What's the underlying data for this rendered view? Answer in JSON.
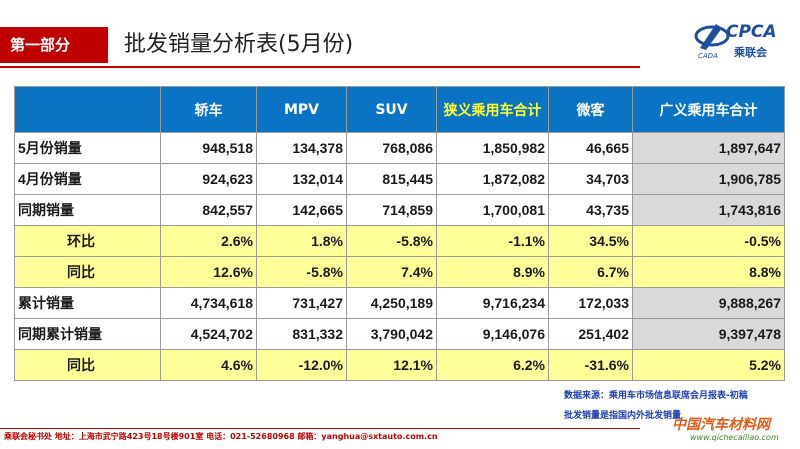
{
  "header": {
    "section_tag": "第一部分",
    "title": "批发销量分析表(5月份)",
    "logo_text": "CPCA",
    "logo_cn": "乘联会",
    "logo_sub": "CADA"
  },
  "table": {
    "columns": [
      "",
      "轿车",
      "MPV",
      "SUV",
      "狭义乘用车合计",
      "微客",
      "广义乘用车合计"
    ],
    "rows": [
      {
        "label": "5月份销量",
        "values": [
          "948,518",
          "134,378",
          "768,086",
          "1,850,982",
          "46,665",
          "1,897,647"
        ]
      },
      {
        "label": "4月份销量",
        "values": [
          "924,623",
          "132,014",
          "815,445",
          "1,872,082",
          "34,703",
          "1,906,785"
        ]
      },
      {
        "label": "同期销量",
        "values": [
          "842,557",
          "142,665",
          "714,859",
          "1,700,081",
          "43,735",
          "1,743,816"
        ]
      },
      {
        "label": "环比",
        "values": [
          "2.6%",
          "1.8%",
          "-5.8%",
          "-1.1%",
          "34.5%",
          "-0.5%"
        ]
      },
      {
        "label": "同比",
        "values": [
          "12.6%",
          "-5.8%",
          "7.4%",
          "8.9%",
          "6.7%",
          "8.8%"
        ]
      },
      {
        "label": "累计销量",
        "values": [
          "4,734,618",
          "731,427",
          "4,250,189",
          "9,716,234",
          "172,033",
          "9,888,267"
        ]
      },
      {
        "label": "同期累计销量",
        "values": [
          "4,524,702",
          "831,332",
          "3,790,042",
          "9,146,076",
          "251,402",
          "9,397,478"
        ]
      },
      {
        "label": "同比",
        "values": [
          "4.6%",
          "-12.0%",
          "12.1%",
          "6.2%",
          "-31.6%",
          "5.2%"
        ]
      }
    ]
  },
  "notes": {
    "source": "数据来源：乘用车市场信息联席会月报表-初稿",
    "definition": "批发销量是指国内外批发销量"
  },
  "footer": {
    "text": "乘联会秘书处   地址：上海市武宁路423号18号楼901室  电话：021-52680968   邮箱：yanghua@sxtauto.com.cn"
  },
  "watermark": {
    "text": "中国汽车材料网",
    "url": "www.qichecailiao.com"
  },
  "colors": {
    "accent_red": "#c00000",
    "header_blue": "#0a73c4",
    "highlight_yellow": "#ffff99",
    "gray_column": "#d9d9d9"
  }
}
